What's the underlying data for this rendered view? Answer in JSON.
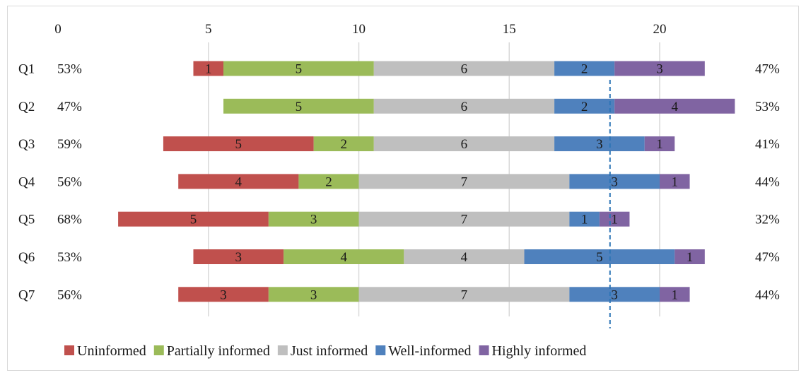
{
  "chart_data": {
    "type": "bar",
    "orientation": "horizontal",
    "stacked": true,
    "title": "",
    "xlabel": "",
    "ylabel": "",
    "xlim": [
      0,
      22
    ],
    "x_ticks": [
      0,
      5,
      10,
      15,
      20
    ],
    "grid": true,
    "legend_position": "bottom",
    "reference_line": {
      "x": 18.35,
      "style": "dashed"
    },
    "categories": [
      "Q1",
      "Q2",
      "Q3",
      "Q4",
      "Q5",
      "Q6",
      "Q7"
    ],
    "left_percent": [
      "53%",
      "47%",
      "59%",
      "56%",
      "68%",
      "53%",
      "56%"
    ],
    "right_percent": [
      "47%",
      "53%",
      "41%",
      "44%",
      "32%",
      "47%",
      "44%"
    ],
    "bar_start": [
      4.5,
      5.5,
      3.5,
      4.0,
      2.0,
      4.5,
      4.0
    ],
    "series": [
      {
        "name": "Uninformed",
        "color": "#c0504d",
        "values": [
          1,
          0,
          5,
          4,
          5,
          3,
          3
        ]
      },
      {
        "name": "Partially informed",
        "color": "#9bbb59",
        "values": [
          5,
          5,
          2,
          2,
          3,
          4,
          3
        ]
      },
      {
        "name": "Just informed",
        "color": "#bfbfbf",
        "values": [
          6,
          6,
          6,
          7,
          7,
          4,
          7
        ]
      },
      {
        "name": "Well-informed",
        "color": "#4f81bd",
        "values": [
          2,
          2,
          3,
          3,
          1,
          5,
          3
        ]
      },
      {
        "name": "Highly informed",
        "color": "#8064a2",
        "values": [
          3,
          4,
          1,
          1,
          1,
          1,
          1
        ]
      }
    ]
  }
}
